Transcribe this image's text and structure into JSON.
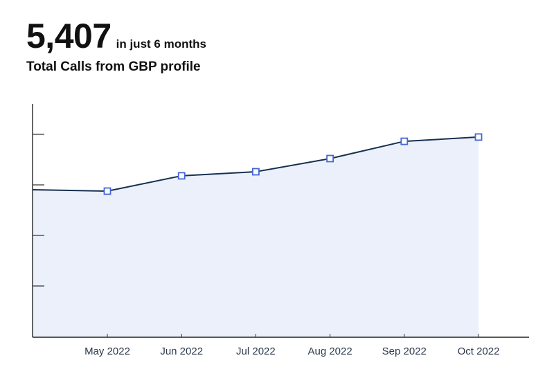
{
  "header": {
    "value": "5,407",
    "value_suffix": "in just 6 months",
    "subtitle": "Total Calls from GBP profile"
  },
  "colors": {
    "line": "#16304f",
    "marker_stroke": "#4466d6",
    "area_fill": "#ebf0fb",
    "axis": "#333333"
  },
  "chart_data": {
    "type": "area",
    "title": "Total Calls from GBP profile",
    "subtitle": "5,407 in just 6 months",
    "categories": [
      "May 2022",
      "Jun 2022",
      "Jul 2022",
      "Aug 2022",
      "Sep 2022",
      "Oct 2022"
    ],
    "series": [
      {
        "name": "Total Calls",
        "values": [
          754,
          833,
          854,
          922,
          1011,
          1033
        ]
      }
    ],
    "total": 5407,
    "xlabel": "",
    "ylabel": "",
    "ytick_labels": "none shown",
    "ylim": [
      0,
      1300
    ],
    "grid": false,
    "legend": "none",
    "markers": "hollow squares"
  }
}
